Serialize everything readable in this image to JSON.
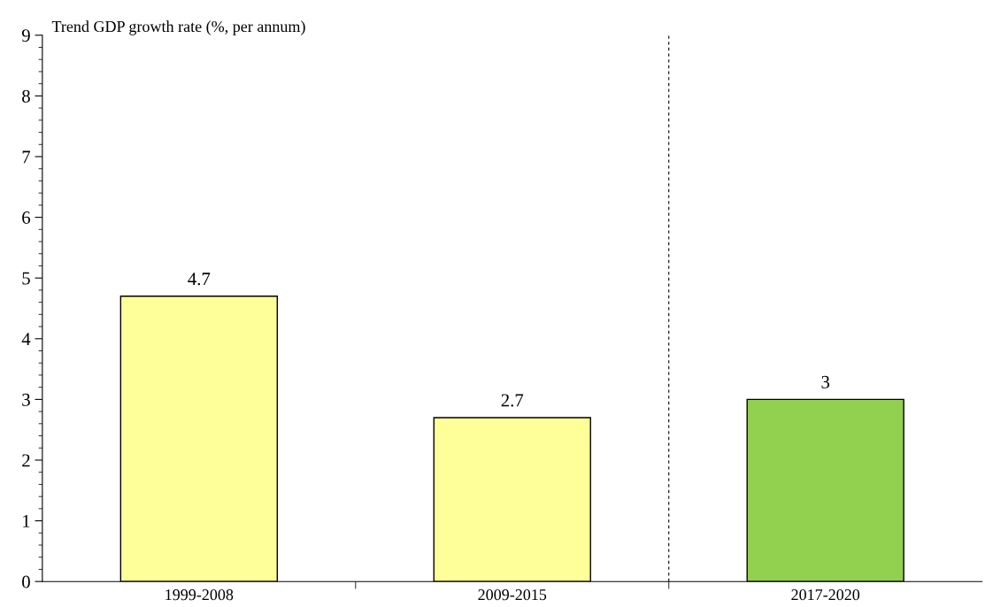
{
  "chart_data": {
    "type": "bar",
    "ylabel": "Trend GDP growth rate (%, per annum)",
    "categories": [
      "1999-2008",
      "2009-2015",
      "2017-2020"
    ],
    "values": [
      4.7,
      2.7,
      3
    ],
    "colors": [
      "#ffff99",
      "#ffff99",
      "#92d050"
    ],
    "data_labels": true,
    "ylim": [
      0,
      9
    ],
    "yticks": [
      0,
      1,
      2,
      3,
      4,
      5,
      6,
      7,
      8,
      9
    ],
    "grid": false,
    "legend": false
  }
}
